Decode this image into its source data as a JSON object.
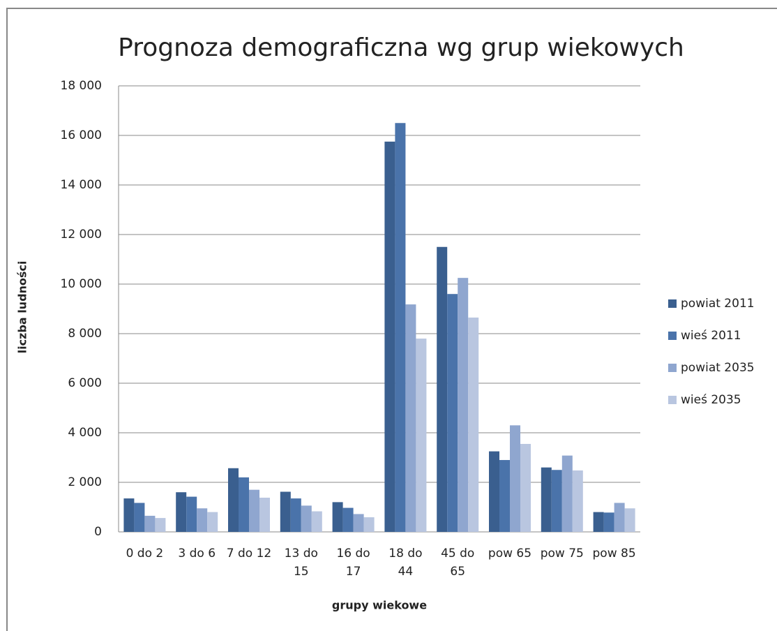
{
  "chart_data": {
    "type": "bar",
    "title": "Prognoza demograficzna wg grup wiekowych",
    "x_label": "grupy wiekowe",
    "y_label": "liczba ludności",
    "categories": [
      "0 do 2",
      "3 do 6",
      "7 do 12",
      "13 do 15",
      "16 do 17",
      "18 do 44",
      "45 do 65",
      "pow 65",
      "pow 75",
      "pow 85"
    ],
    "series": [
      {
        "name": "powiat 2011",
        "color": "#3a5f8f",
        "values": [
          1350,
          1600,
          2570,
          1620,
          1200,
          15750,
          11500,
          3250,
          2600,
          800
        ]
      },
      {
        "name": "wieś 2011",
        "color": "#4a73aa",
        "values": [
          1170,
          1420,
          2200,
          1350,
          970,
          16500,
          9600,
          2900,
          2500,
          780
        ]
      },
      {
        "name": "powiat 2035",
        "color": "#8fa6cf",
        "values": [
          650,
          950,
          1700,
          1060,
          720,
          9180,
          10250,
          4300,
          3080,
          1170
        ]
      },
      {
        "name": "wieś 2035",
        "color": "#b9c6e0",
        "values": [
          560,
          800,
          1380,
          830,
          590,
          7800,
          8650,
          3550,
          2480,
          950
        ]
      }
    ],
    "ylim": [
      0,
      18000
    ],
    "yticks": [
      0,
      {
        "value": 2000,
        "label": "2 000"
      },
      {
        "value": 4000,
        "label": "4 000"
      },
      {
        "value": 6000,
        "label": "6 000"
      },
      {
        "value": 8000,
        "label": "8 000"
      },
      {
        "value": 10000,
        "label": "10 000"
      },
      {
        "value": 12000,
        "label": "12 000"
      },
      {
        "value": 14000,
        "label": "14 000"
      },
      {
        "value": 16000,
        "label": "16 000"
      },
      {
        "value": 18000,
        "label": "18 000"
      }
    ],
    "grid": true,
    "legend": "right"
  }
}
